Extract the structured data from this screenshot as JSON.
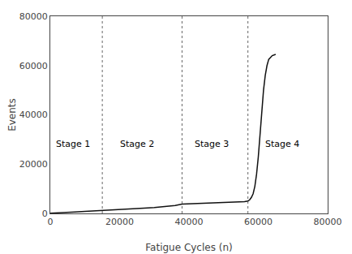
{
  "chart_data": {
    "type": "line",
    "xlabel": "Fatigue Cycles (n)",
    "ylabel": "Events",
    "x": [
      0,
      500,
      1000,
      2000,
      3000,
      5000,
      7000,
      10000,
      13000,
      15000,
      18000,
      21000,
      24000,
      27000,
      30000,
      33000,
      36000,
      38000,
      40000,
      42000,
      44000,
      46000,
      48000,
      50000,
      52000,
      54000,
      55000,
      56000,
      57000,
      57500,
      58000,
      58500,
      59000,
      59500,
      60000,
      60500,
      61000,
      61500,
      62000,
      62500,
      63000,
      64000,
      65000
    ],
    "values": [
      100,
      150,
      200,
      300,
      400,
      500,
      600,
      800,
      1000,
      1100,
      1300,
      1600,
      1800,
      2100,
      2400,
      2800,
      3200,
      3800,
      3900,
      4000,
      4100,
      4200,
      4300,
      4400,
      4500,
      4600,
      4700,
      4800,
      5000,
      5500,
      6500,
      8000,
      11000,
      16000,
      23000,
      32000,
      42000,
      50000,
      56000,
      60000,
      62500,
      64000,
      64500
    ],
    "color": "#111111",
    "xlim": [
      0,
      80000
    ],
    "ylim": [
      0,
      80000
    ],
    "xticks": [
      0,
      20000,
      40000,
      60000,
      80000
    ],
    "yticks": [
      0,
      20000,
      40000,
      60000,
      80000
    ],
    "grid": false,
    "vlines": {
      "values": [
        15000,
        38000,
        57000
      ],
      "color": "#666666",
      "line_style": "dotted"
    },
    "annotations": [
      {
        "text": "Stage 1",
        "x": 6500,
        "y": 28000
      },
      {
        "text": "Stage 2",
        "x": 25000,
        "y": 28000
      },
      {
        "text": "Stage 3",
        "x": 46500,
        "y": 28000
      },
      {
        "text": "Stage 4",
        "x": 67000,
        "y": 28000
      }
    ]
  }
}
